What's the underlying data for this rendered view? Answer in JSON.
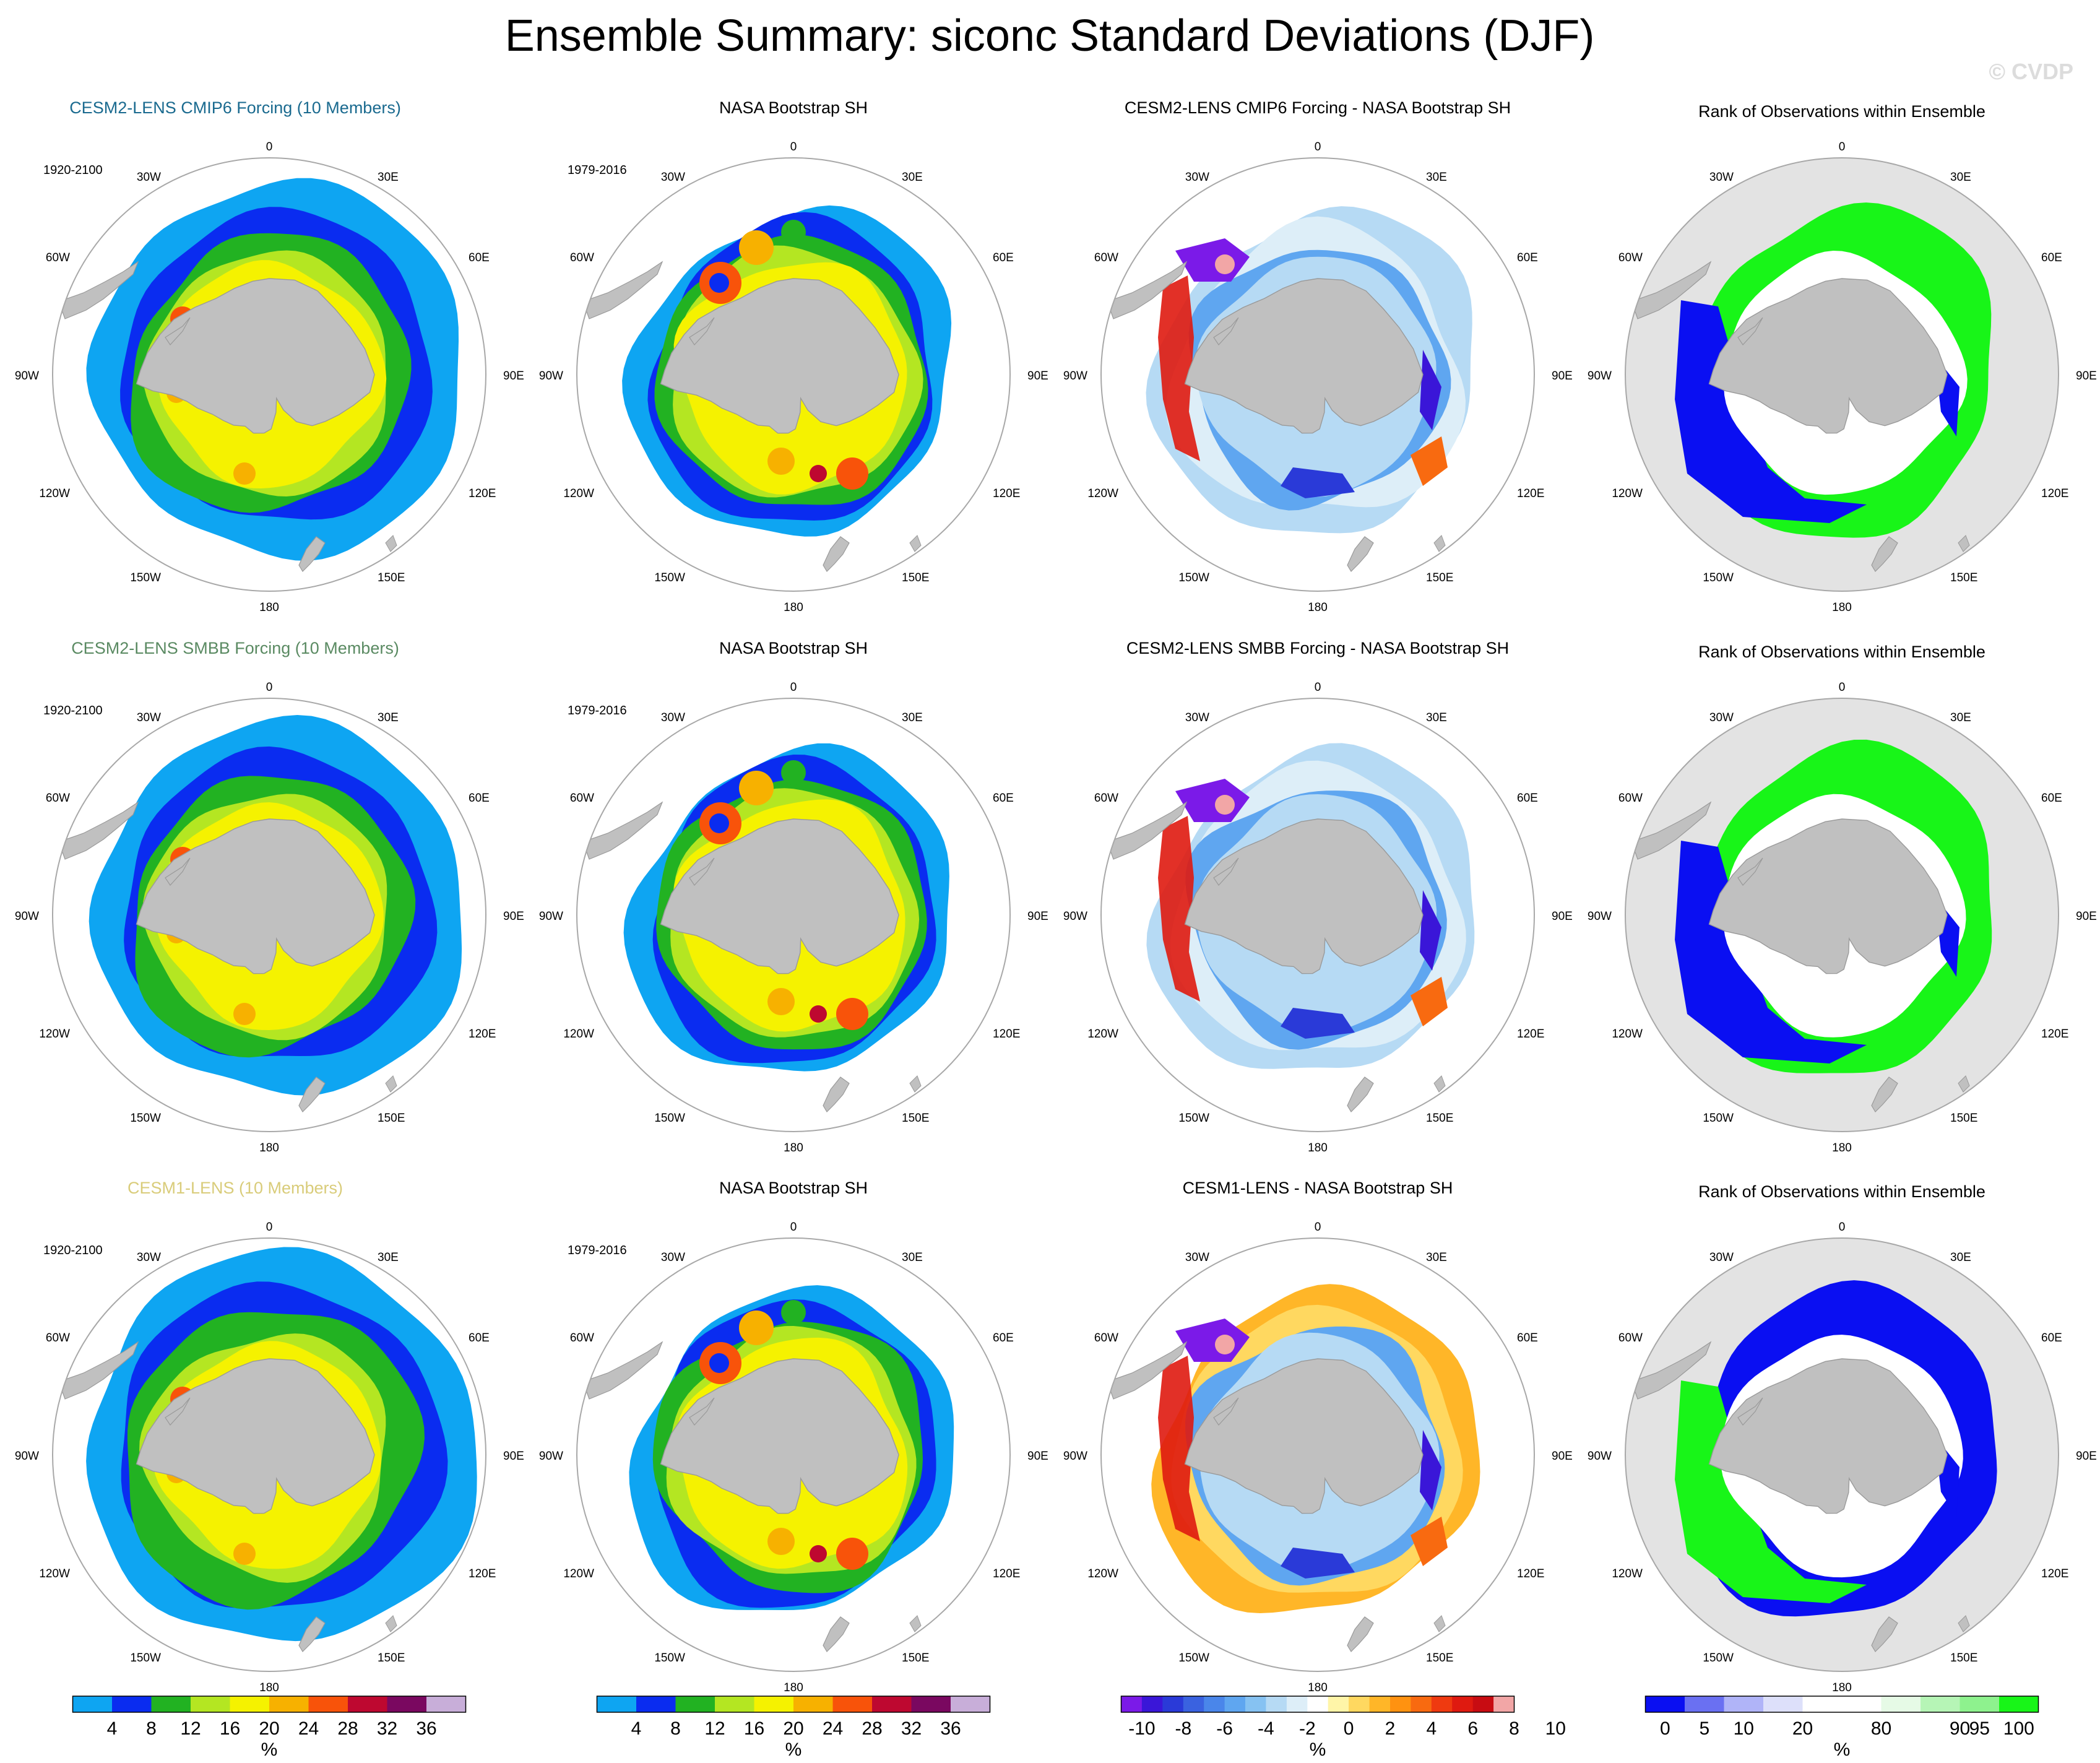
{
  "title": "Ensemble Summary: siconc Standard Deviations (DJF)",
  "watermark": "© CVDP",
  "colors": {
    "land": "#c0c0c0",
    "rank_background": "#e3e3e3",
    "coast": "#9a9a9a",
    "grid_circle": "#a8a8a8",
    "model_title_colors": [
      "#1a6a8f",
      "#5a8a62",
      "#d9cc7a"
    ]
  },
  "geo_labels": {
    "lon": [
      "0",
      "30E",
      "60E",
      "90E",
      "120E",
      "150E",
      "180",
      "150W",
      "120W",
      "90W",
      "60W",
      "30W"
    ]
  },
  "rows": [
    {
      "model_title": "CESM2-LENS CMIP6 Forcing (10 Members)",
      "model_years": "1920-2100",
      "obs_title": "NASA Bootstrap SH",
      "obs_years": "1979-2016",
      "diff_title": "CESM2-LENS CMIP6 Forcing - NASA Bootstrap SH",
      "rank_title": "Rank of Observations within Ensemble"
    },
    {
      "model_title": "CESM2-LENS SMBB Forcing (10 Members)",
      "model_years": "1920-2100",
      "obs_title": "NASA Bootstrap SH",
      "obs_years": "1979-2016",
      "diff_title": "CESM2-LENS SMBB Forcing - NASA Bootstrap SH",
      "rank_title": "Rank of Observations within Ensemble"
    },
    {
      "model_title": "CESM1-LENS (10 Members)",
      "model_years": "1920-2100",
      "obs_title": "NASA Bootstrap SH",
      "obs_years": "1979-2016",
      "diff_title": "CESM1-LENS - NASA Bootstrap SH",
      "rank_title": "Rank of Observations within Ensemble"
    }
  ],
  "colorbars": [
    {
      "unit": "%",
      "colors": [
        "#0ea5f2",
        "#0a2cf0",
        "#22b222",
        "#b4e622",
        "#f5f200",
        "#f7b100",
        "#f8530a",
        "#be0830",
        "#7a0860",
        "#c8aed9"
      ],
      "labels": [
        "4",
        "8",
        "12",
        "16",
        "20",
        "24",
        "28",
        "32",
        "36"
      ]
    },
    {
      "unit": "%",
      "colors": [
        "#0ea5f2",
        "#0a2cf0",
        "#22b222",
        "#b4e622",
        "#f5f200",
        "#f7b100",
        "#f8530a",
        "#be0830",
        "#7a0860",
        "#c8aed9"
      ],
      "labels": [
        "4",
        "8",
        "12",
        "16",
        "20",
        "24",
        "28",
        "32",
        "36"
      ]
    },
    {
      "unit": "%",
      "colors": [
        "#7b1ae8",
        "#3a16d8",
        "#2a3ad8",
        "#3a62e0",
        "#4a86ea",
        "#5fa6f0",
        "#86c2f2",
        "#b6daf4",
        "#ddeef8",
        "#ffffff",
        "#fff5a8",
        "#ffd860",
        "#ffb628",
        "#ff9210",
        "#f86a10",
        "#ef3a10",
        "#df1a10",
        "#c80c12",
        "#f2a6a6"
      ],
      "labels": [
        "-10",
        "-8",
        "-6",
        "-4",
        "-2",
        "0",
        "2",
        "4",
        "6",
        "8",
        "10"
      ]
    },
    {
      "unit": "%",
      "colors": [
        "#0a0ff2",
        "#6a70f2",
        "#b0b4f8",
        "#dde0fa",
        "#ffffff",
        "#ffffff",
        "#e6fae6",
        "#b6f5b6",
        "#8ef28e",
        "#18f518"
      ],
      "labels": [
        "0",
        "5",
        "10",
        "20",
        "80",
        "90",
        "95",
        "100"
      ]
    }
  ]
}
